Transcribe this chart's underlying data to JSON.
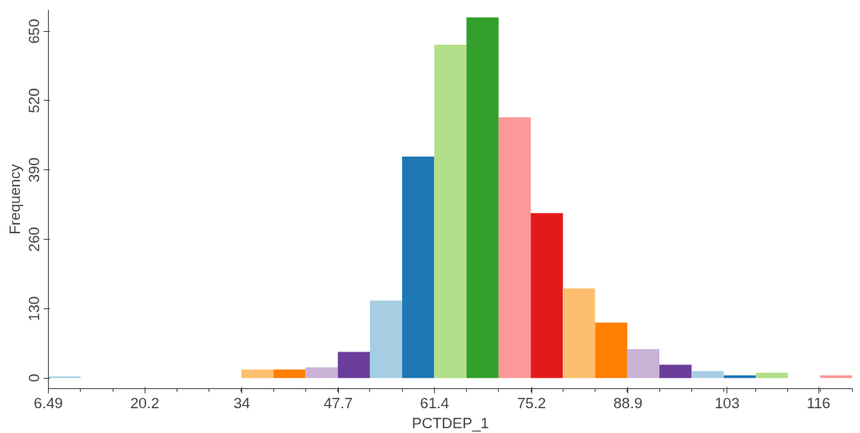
{
  "chart_data": {
    "type": "histogram",
    "xlabel": "PCTDEP_1",
    "ylabel": "Frequency",
    "bins": [
      6.49,
      11.06,
      15.64,
      20.21,
      24.78,
      29.36,
      33.93,
      38.5,
      43.07,
      47.65,
      52.22,
      56.79,
      61.37,
      65.94,
      70.51,
      75.09,
      79.66,
      84.23,
      88.81,
      93.38,
      97.95,
      102.52,
      107.1,
      111.67,
      116.24,
      120.82
    ],
    "values": [
      3,
      0,
      0,
      0,
      0,
      0,
      16,
      16,
      20,
      49,
      145,
      415,
      625,
      676,
      489,
      309,
      168,
      104,
      54,
      25,
      13,
      5,
      10,
      0,
      5
    ],
    "colors": [
      "#a6cee3",
      null,
      null,
      null,
      null,
      null,
      "#fdbf6f",
      "#ff7f00",
      "#cab2d6",
      "#6a3d9a",
      "#a6cee3",
      "#1f78b4",
      "#b2df8a",
      "#33a02c",
      "#fb9a99",
      "#e31a1c",
      "#fdbf6f",
      "#ff7f00",
      "#cab2d6",
      "#6a3d9a",
      "#a6cee3",
      "#1f78b4",
      "#b2df8a",
      null,
      "#fb9a99"
    ],
    "xlim": [
      6.49,
      120.82
    ],
    "ylim": [
      -20,
      690
    ],
    "xticks": [
      6.49,
      20.2,
      34,
      47.7,
      61.4,
      75.2,
      88.9,
      103,
      116
    ],
    "yticks": [
      0,
      130,
      260,
      390,
      520,
      650
    ],
    "grid": false
  }
}
